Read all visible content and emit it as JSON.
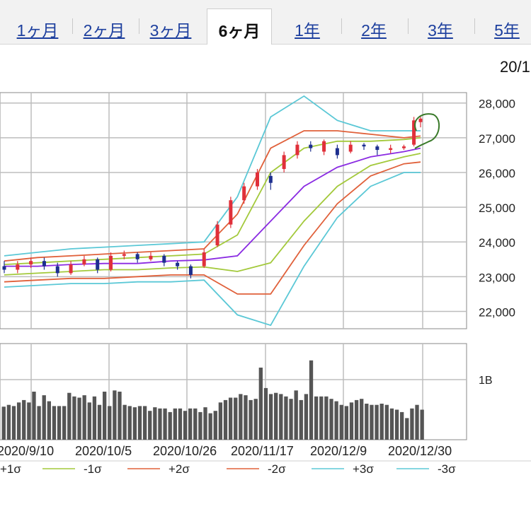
{
  "tabs": [
    {
      "label": "1ヶ月",
      "active": false
    },
    {
      "label": "2ヶ月",
      "active": false
    },
    {
      "label": "3ヶ月",
      "active": false
    },
    {
      "label": "6ヶ月",
      "active": true
    },
    {
      "label": "1年",
      "active": false
    },
    {
      "label": "2年",
      "active": false
    },
    {
      "label": "3年",
      "active": false
    },
    {
      "label": "5年",
      "active": false
    }
  ],
  "header_date_cut": "20/1",
  "chart_data": [
    {
      "type": "candlestick",
      "title": "",
      "ylim": [
        21500,
        28300
      ],
      "yticks": [
        22000,
        23000,
        24000,
        25000,
        26000,
        27000,
        28000
      ],
      "ytick_labels": [
        "22,000",
        "23,000",
        "24,000",
        "25,000",
        "26,000",
        "27,000",
        "28,000"
      ],
      "grid": true,
      "x_dates": [
        "2020/9/10",
        "2020/10/5",
        "2020/10/26",
        "2020/11/17",
        "2020/12/9",
        "2020/12/30"
      ],
      "colors": {
        "up": "#e0303a",
        "down": "#1d2f8f",
        "sma": "#8a2be2",
        "sigma1": "#a3c93b",
        "sigma2": "#e0603a",
        "sigma3": "#5bc8d6",
        "grid": "#bdbdbd",
        "annotation": "#3a7a2a"
      },
      "series": [
        {
          "name": "±1σ_mid",
          "x": [
            0,
            10,
            20,
            30,
            40,
            50,
            60,
            70,
            80,
            90,
            100,
            110,
            120,
            125
          ],
          "values": [
            23300,
            23300,
            23350,
            23380,
            23380,
            23450,
            23480,
            23600,
            24600,
            25600,
            26150,
            26450,
            26600,
            26700
          ]
        },
        {
          "name": "+1σ",
          "x": [
            0,
            10,
            20,
            30,
            40,
            50,
            60,
            70,
            80,
            90,
            100,
            110,
            120,
            125
          ],
          "values": [
            23350,
            23400,
            23450,
            23500,
            23550,
            23600,
            23650,
            24200,
            26000,
            26700,
            26900,
            26900,
            26950,
            27000
          ]
        },
        {
          "name": "-1σ",
          "x": [
            0,
            10,
            20,
            30,
            40,
            50,
            60,
            70,
            80,
            90,
            100,
            110,
            120,
            125
          ],
          "values": [
            23050,
            23100,
            23150,
            23200,
            23200,
            23250,
            23280,
            23150,
            23400,
            24600,
            25600,
            26200,
            26450,
            26550
          ]
        },
        {
          "name": "+2σ",
          "x": [
            0,
            10,
            20,
            30,
            40,
            50,
            60,
            70,
            80,
            90,
            100,
            110,
            120,
            125
          ],
          "values": [
            23450,
            23550,
            23600,
            23650,
            23700,
            23750,
            23800,
            24800,
            26700,
            27200,
            27200,
            27100,
            27000,
            27050
          ]
        },
        {
          "name": "-2σ",
          "x": [
            0,
            10,
            20,
            30,
            40,
            50,
            60,
            70,
            80,
            90,
            100,
            110,
            120,
            125
          ],
          "values": [
            22850,
            22900,
            22950,
            22950,
            23000,
            23050,
            23050,
            22500,
            22500,
            23900,
            25100,
            25900,
            26250,
            26300
          ]
        },
        {
          "name": "+3σ",
          "x": [
            0,
            10,
            20,
            30,
            40,
            50,
            60,
            70,
            80,
            90,
            100,
            110,
            120,
            125
          ],
          "values": [
            23600,
            23700,
            23800,
            23850,
            23900,
            23950,
            24000,
            25300,
            27600,
            28200,
            27500,
            27200,
            27200,
            27200
          ]
        },
        {
          "name": "-3σ",
          "x": [
            0,
            10,
            20,
            30,
            40,
            50,
            60,
            70,
            80,
            90,
            100,
            110,
            120,
            125
          ],
          "values": [
            22700,
            22750,
            22800,
            22800,
            22850,
            22850,
            22900,
            21900,
            21600,
            23300,
            24700,
            25600,
            26000,
            26000
          ]
        }
      ],
      "candles": [
        {
          "x": 0,
          "o": 23300,
          "c": 23200,
          "h": 23450,
          "l": 23100
        },
        {
          "x": 4,
          "o": 23200,
          "c": 23350,
          "h": 23450,
          "l": 23100
        },
        {
          "x": 8,
          "o": 23350,
          "c": 23450,
          "h": 23550,
          "l": 23250
        },
        {
          "x": 12,
          "o": 23450,
          "c": 23300,
          "h": 23550,
          "l": 23200
        },
        {
          "x": 16,
          "o": 23300,
          "c": 23100,
          "h": 23400,
          "l": 23000
        },
        {
          "x": 20,
          "o": 23100,
          "c": 23350,
          "h": 23450,
          "l": 23050
        },
        {
          "x": 24,
          "o": 23350,
          "c": 23500,
          "h": 23600,
          "l": 23300
        },
        {
          "x": 28,
          "o": 23500,
          "c": 23200,
          "h": 23550,
          "l": 23100
        },
        {
          "x": 32,
          "o": 23200,
          "c": 23600,
          "h": 23700,
          "l": 23150
        },
        {
          "x": 36,
          "o": 23600,
          "c": 23650,
          "h": 23750,
          "l": 23500
        },
        {
          "x": 40,
          "o": 23650,
          "c": 23500,
          "h": 23700,
          "l": 23400
        },
        {
          "x": 44,
          "o": 23500,
          "c": 23600,
          "h": 23700,
          "l": 23450
        },
        {
          "x": 48,
          "o": 23600,
          "c": 23400,
          "h": 23650,
          "l": 23300
        },
        {
          "x": 52,
          "o": 23400,
          "c": 23300,
          "h": 23450,
          "l": 23200
        },
        {
          "x": 56,
          "o": 23300,
          "c": 23050,
          "h": 23350,
          "l": 22950
        },
        {
          "x": 60,
          "o": 23300,
          "c": 23700,
          "h": 23800,
          "l": 23250
        },
        {
          "x": 64,
          "o": 23900,
          "c": 24500,
          "h": 24600,
          "l": 23850
        },
        {
          "x": 68,
          "o": 24500,
          "c": 25200,
          "h": 25300,
          "l": 24400
        },
        {
          "x": 72,
          "o": 25200,
          "c": 25600,
          "h": 25700,
          "l": 25100
        },
        {
          "x": 76,
          "o": 25600,
          "c": 26000,
          "h": 26100,
          "l": 25500
        },
        {
          "x": 80,
          "o": 25900,
          "c": 25700,
          "h": 26000,
          "l": 25500
        },
        {
          "x": 84,
          "o": 26100,
          "c": 26500,
          "h": 26600,
          "l": 26000
        },
        {
          "x": 88,
          "o": 26500,
          "c": 26800,
          "h": 26900,
          "l": 26400
        },
        {
          "x": 92,
          "o": 26800,
          "c": 26700,
          "h": 26900,
          "l": 26600
        },
        {
          "x": 96,
          "o": 26600,
          "c": 26900,
          "h": 26950,
          "l": 26500
        },
        {
          "x": 100,
          "o": 26700,
          "c": 26500,
          "h": 26800,
          "l": 26400
        },
        {
          "x": 104,
          "o": 26600,
          "c": 26800,
          "h": 26900,
          "l": 26550
        },
        {
          "x": 108,
          "o": 26800,
          "c": 26750,
          "h": 26850,
          "l": 26650
        },
        {
          "x": 112,
          "o": 26750,
          "c": 26650,
          "h": 26800,
          "l": 26500
        },
        {
          "x": 116,
          "o": 26650,
          "c": 26700,
          "h": 26800,
          "l": 26550
        },
        {
          "x": 120,
          "o": 26700,
          "c": 26750,
          "h": 26800,
          "l": 26650
        },
        {
          "x": 123,
          "o": 26800,
          "c": 27500,
          "h": 27600,
          "l": 26750
        },
        {
          "x": 125,
          "o": 27450,
          "c": 27550,
          "h": 27600,
          "l": 27300
        }
      ]
    },
    {
      "type": "bar",
      "ytick_labels": [
        "1B"
      ],
      "ylim": [
        0,
        1.6
      ],
      "values": [
        0.55,
        0.58,
        0.56,
        0.62,
        0.66,
        0.62,
        0.8,
        0.56,
        0.74,
        0.64,
        0.56,
        0.56,
        0.56,
        0.78,
        0.72,
        0.7,
        0.74,
        0.62,
        0.72,
        0.58,
        0.8,
        0.56,
        0.82,
        0.8,
        0.58,
        0.56,
        0.54,
        0.56,
        0.56,
        0.48,
        0.54,
        0.52,
        0.52,
        0.46,
        0.52,
        0.52,
        0.48,
        0.52,
        0.52,
        0.46,
        0.54,
        0.44,
        0.48,
        0.62,
        0.66,
        0.7,
        0.7,
        0.76,
        0.74,
        0.66,
        0.68,
        1.2,
        0.86,
        0.76,
        0.78,
        0.76,
        0.72,
        0.68,
        0.82,
        0.66,
        0.76,
        1.32,
        0.72,
        0.72,
        0.72,
        0.68,
        0.64,
        0.58,
        0.56,
        0.62,
        0.66,
        0.68,
        0.6,
        0.58,
        0.58,
        0.6,
        0.58,
        0.52,
        0.5,
        0.46,
        0.36,
        0.52,
        0.58,
        0.5
      ]
    }
  ],
  "axis_dates": [
    "2020/9/10",
    "2020/10/5",
    "2020/10/26",
    "2020/11/17",
    "2020/12/9",
    "2020/12/30"
  ],
  "legend": [
    {
      "label": "+1σ",
      "color": "#8a2be2"
    },
    {
      "label": "-1σ",
      "color": "#a3c93b"
    },
    {
      "label": "+2σ",
      "color": "#e0603a"
    },
    {
      "label": "-2σ",
      "color": "#e0603a"
    },
    {
      "label": "+3σ",
      "color": "#5bc8d6"
    },
    {
      "label": "-3σ",
      "color": "#5bc8d6"
    }
  ]
}
